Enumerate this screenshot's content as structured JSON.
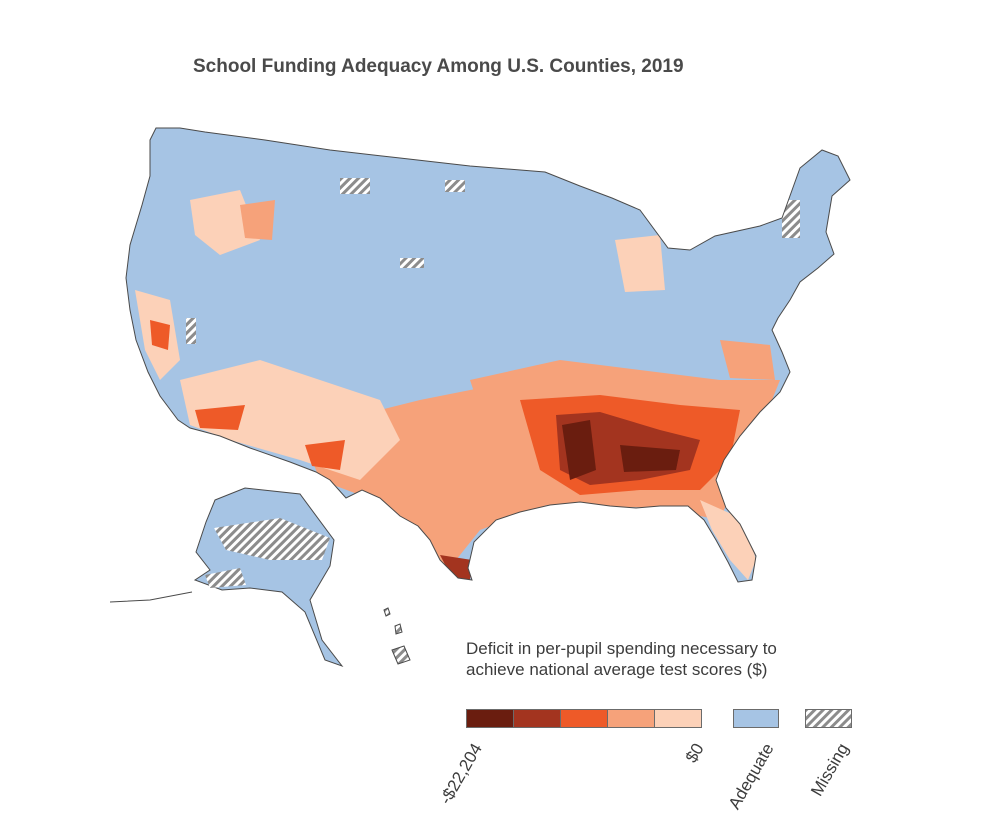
{
  "title": "School Funding Adequacy Among U.S. Counties, 2019",
  "legend": {
    "title_line1": "Deficit in per-pupil spending necessary to",
    "title_line2": "achieve national average test scores ($)",
    "min_label": "-$22,204",
    "max_label": "$0",
    "adequate_label": "Adequate",
    "missing_label": "Missing",
    "deficit_colors": [
      "#6a1d0f",
      "#a3341f",
      "#ee5a28",
      "#f6a27a",
      "#fcd1b8"
    ],
    "adequate_color": "#a6c4e4",
    "missing_color": "#8c8c8c"
  },
  "map_regions": [
    {
      "name": "Southeast",
      "category": "deficit-severe"
    },
    {
      "name": "Southwest",
      "category": "deficit-moderate"
    },
    {
      "name": "Texas",
      "category": "deficit-moderate"
    },
    {
      "name": "Florida",
      "category": "deficit-mild"
    },
    {
      "name": "California",
      "category": "deficit-mild"
    },
    {
      "name": "Northeast",
      "category": "adequate"
    },
    {
      "name": "Midwest",
      "category": "adequate"
    },
    {
      "name": "Great Plains",
      "category": "adequate"
    },
    {
      "name": "Northwest",
      "category": "adequate"
    },
    {
      "name": "Alaska",
      "category": "adequate"
    },
    {
      "name": "Hawaii",
      "category": "missing"
    }
  ]
}
